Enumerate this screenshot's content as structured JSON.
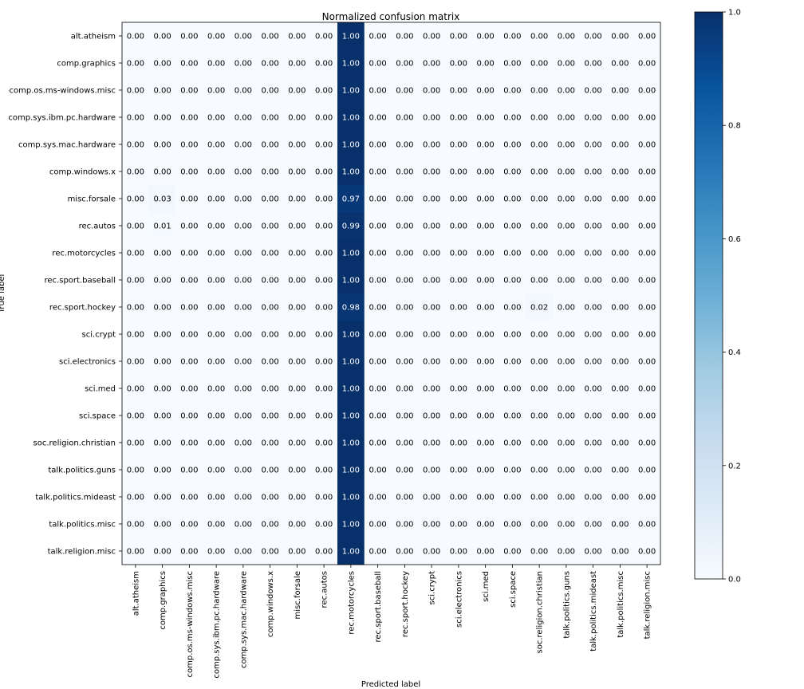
{
  "chart_data": {
    "type": "heatmap",
    "title": "Normalized confusion matrix",
    "xlabel": "Predicted label",
    "ylabel": "True label",
    "labels": [
      "alt.atheism",
      "comp.graphics",
      "comp.os.ms-windows.misc",
      "comp.sys.ibm.pc.hardware",
      "comp.sys.mac.hardware",
      "comp.windows.x",
      "misc.forsale",
      "rec.autos",
      "rec.motorcycles",
      "rec.sport.baseball",
      "rec.sport.hockey",
      "sci.crypt",
      "sci.electronics",
      "sci.med",
      "sci.space",
      "soc.religion.christian",
      "talk.politics.guns",
      "talk.politics.mideast",
      "talk.politics.misc",
      "talk.religion.misc"
    ],
    "matrix": [
      [
        0,
        0,
        0,
        0,
        0,
        0,
        0,
        0,
        1.0,
        0,
        0,
        0,
        0,
        0,
        0,
        0,
        0,
        0,
        0,
        0
      ],
      [
        0,
        0,
        0,
        0,
        0,
        0,
        0,
        0,
        1.0,
        0,
        0,
        0,
        0,
        0,
        0,
        0,
        0,
        0,
        0,
        0
      ],
      [
        0,
        0,
        0,
        0,
        0,
        0,
        0,
        0,
        1.0,
        0,
        0,
        0,
        0,
        0,
        0,
        0,
        0,
        0,
        0,
        0
      ],
      [
        0,
        0,
        0,
        0,
        0,
        0,
        0,
        0,
        1.0,
        0,
        0,
        0,
        0,
        0,
        0,
        0,
        0,
        0,
        0,
        0
      ],
      [
        0,
        0,
        0,
        0,
        0,
        0,
        0,
        0,
        1.0,
        0,
        0,
        0,
        0,
        0,
        0,
        0,
        0,
        0,
        0,
        0
      ],
      [
        0,
        0,
        0,
        0,
        0,
        0,
        0,
        0,
        1.0,
        0,
        0,
        0,
        0,
        0,
        0,
        0,
        0,
        0,
        0,
        0
      ],
      [
        0,
        0.03,
        0,
        0,
        0,
        0,
        0,
        0,
        0.97,
        0,
        0,
        0,
        0,
        0,
        0,
        0,
        0,
        0,
        0,
        0
      ],
      [
        0,
        0.01,
        0,
        0,
        0,
        0,
        0,
        0,
        0.99,
        0,
        0,
        0,
        0,
        0,
        0,
        0,
        0,
        0,
        0,
        0
      ],
      [
        0,
        0,
        0,
        0,
        0,
        0,
        0,
        0,
        1.0,
        0,
        0,
        0,
        0,
        0,
        0,
        0,
        0,
        0,
        0,
        0
      ],
      [
        0,
        0,
        0,
        0,
        0,
        0,
        0,
        0,
        1.0,
        0,
        0,
        0,
        0,
        0,
        0,
        0,
        0,
        0,
        0,
        0
      ],
      [
        0,
        0,
        0,
        0,
        0,
        0,
        0,
        0,
        0.98,
        0,
        0,
        0,
        0,
        0,
        0,
        0.02,
        0,
        0,
        0,
        0
      ],
      [
        0,
        0,
        0,
        0,
        0,
        0,
        0,
        0,
        1.0,
        0,
        0,
        0,
        0,
        0,
        0,
        0,
        0,
        0,
        0,
        0
      ],
      [
        0,
        0,
        0,
        0,
        0,
        0,
        0,
        0,
        1.0,
        0,
        0,
        0,
        0,
        0,
        0,
        0,
        0,
        0,
        0,
        0
      ],
      [
        0,
        0,
        0,
        0,
        0,
        0,
        0,
        0,
        1.0,
        0,
        0,
        0,
        0,
        0,
        0,
        0,
        0,
        0,
        0,
        0
      ],
      [
        0,
        0,
        0,
        0,
        0,
        0,
        0,
        0,
        1.0,
        0,
        0,
        0,
        0,
        0,
        0,
        0,
        0,
        0,
        0,
        0
      ],
      [
        0,
        0,
        0,
        0,
        0,
        0,
        0,
        0,
        1.0,
        0,
        0,
        0,
        0,
        0,
        0,
        0,
        0,
        0,
        0,
        0
      ],
      [
        0,
        0,
        0,
        0,
        0,
        0,
        0,
        0,
        1.0,
        0,
        0,
        0,
        0,
        0,
        0,
        0,
        0,
        0,
        0,
        0
      ],
      [
        0,
        0,
        0,
        0,
        0,
        0,
        0,
        0,
        1.0,
        0,
        0,
        0,
        0,
        0,
        0,
        0,
        0,
        0,
        0,
        0
      ],
      [
        0,
        0,
        0,
        0,
        0,
        0,
        0,
        0,
        1.0,
        0,
        0,
        0,
        0,
        0,
        0,
        0,
        0,
        0,
        0,
        0
      ],
      [
        0,
        0,
        0,
        0,
        0,
        0,
        0,
        0,
        1.0,
        0,
        0,
        0,
        0,
        0,
        0,
        0,
        0,
        0,
        0,
        0
      ]
    ],
    "value_format_decimals": 2,
    "colormap": "Blues",
    "color_low": "#f7fbff",
    "color_high": "#08306b",
    "text_color_dark": "#000000",
    "text_color_light": "#ffffff",
    "vmin": 0.0,
    "vmax": 1.0,
    "colorbar_ticks": [
      0.0,
      0.2,
      0.4,
      0.6,
      0.8,
      1.0
    ],
    "colorbar_tick_labels": [
      "0.0",
      "0.2",
      "0.4",
      "0.6",
      "0.8",
      "1.0"
    ],
    "grid": false,
    "legend": "colorbar-right"
  }
}
